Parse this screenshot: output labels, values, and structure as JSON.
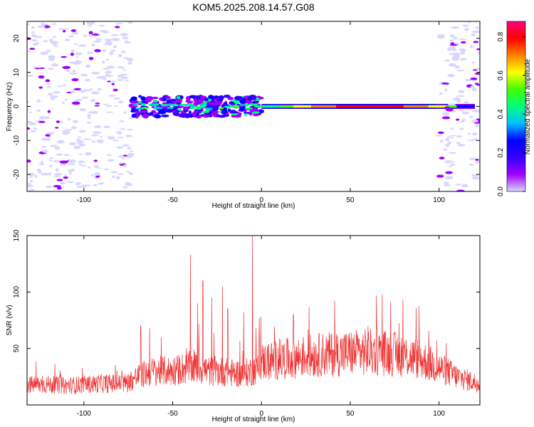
{
  "title": "KOM5.2025.208.14.57.G08",
  "chart_data": [
    {
      "type": "heatmap",
      "xlabel": "Height of straight line (km)",
      "ylabel": "Frequency (Hz)",
      "xlim": [
        -132,
        123
      ],
      "ylim": [
        -25,
        25
      ],
      "xticks": [
        -100,
        -50,
        0,
        50,
        100
      ],
      "yticks": [
        -20,
        -10,
        0,
        10,
        20
      ],
      "xtick_labels": [
        "-100",
        "-50",
        "0",
        "50",
        "100"
      ],
      "ytick_labels": [
        "-20",
        "-10",
        "0",
        "10",
        "20"
      ],
      "colorbar": {
        "label": "Normalized spectral amplitude",
        "range": [
          0.0,
          0.88
        ],
        "ticks": [
          0.0,
          0.2,
          0.4,
          0.6,
          0.8
        ],
        "tick_labels": [
          "0.0",
          "0.2",
          "0.4",
          "0.6",
          "0.8"
        ],
        "colors": [
          "#d8d8ff",
          "#a000ff",
          "#3300ff",
          "#0000ff",
          "#00bfff",
          "#00ff80",
          "#40ff00",
          "#ffff00",
          "#ff8000",
          "#ff0000",
          "#ff0080"
        ]
      },
      "features": [
        {
          "x_range": [
            -132,
            -73
          ],
          "freq_range": [
            -25,
            25
          ],
          "amplitude": 0.05
        },
        {
          "x_range": [
            -73,
            0
          ],
          "freq_range": [
            -3,
            3
          ],
          "amplitude": 0.25
        },
        {
          "x_range": [
            0,
            120
          ],
          "freq_range": [
            -0.6,
            0.6
          ],
          "amplitude": 0.8
        },
        {
          "x_range": [
            100,
            123
          ],
          "freq_range": [
            -25,
            25
          ],
          "amplitude": 0.05
        }
      ]
    },
    {
      "type": "line",
      "xlabel": "Height of straight line (km)",
      "ylabel": "SNR (v/v)",
      "xlim": [
        -132,
        123
      ],
      "ylim": [
        0,
        150
      ],
      "xticks": [
        -100,
        -50,
        0,
        50,
        100
      ],
      "yticks": [
        50,
        100,
        150
      ],
      "xtick_labels": [
        "-100",
        "-50",
        "0",
        "50",
        "100"
      ],
      "ytick_labels": [
        "50",
        "100",
        "150"
      ],
      "series": [
        {
          "color": "#ee3333",
          "x": [
            -130,
            -120,
            -110,
            -100,
            -90,
            -80,
            -75,
            -70,
            -65,
            -60,
            -55,
            -50,
            -45,
            -40,
            -35,
            -30,
            -25,
            -20,
            -15,
            -10,
            -5,
            0,
            10,
            20,
            30,
            40,
            50,
            60,
            70,
            80,
            90,
            100,
            110,
            120
          ],
          "y": [
            18,
            18,
            17,
            18,
            19,
            19,
            20,
            25,
            28,
            30,
            30,
            30,
            32,
            33,
            33,
            30,
            30,
            29,
            28,
            28,
            30,
            38,
            40,
            42,
            44,
            45,
            46,
            47,
            46,
            44,
            40,
            33,
            25,
            20
          ],
          "peaks": [
            {
              "x": -68,
              "y": 70
            },
            {
              "x": -63,
              "y": 68
            },
            {
              "x": -40,
              "y": 133
            },
            {
              "x": -36,
              "y": 90
            },
            {
              "x": -33,
              "y": 110
            },
            {
              "x": -28,
              "y": 95
            },
            {
              "x": -22,
              "y": 105
            },
            {
              "x": -19,
              "y": 85
            },
            {
              "x": -10,
              "y": 82
            },
            {
              "x": -5,
              "y": 150
            },
            {
              "x": -3,
              "y": 68
            },
            {
              "x": 18,
              "y": 80
            },
            {
              "x": 60,
              "y": 70
            },
            {
              "x": 65,
              "y": 68
            }
          ]
        }
      ]
    }
  ]
}
